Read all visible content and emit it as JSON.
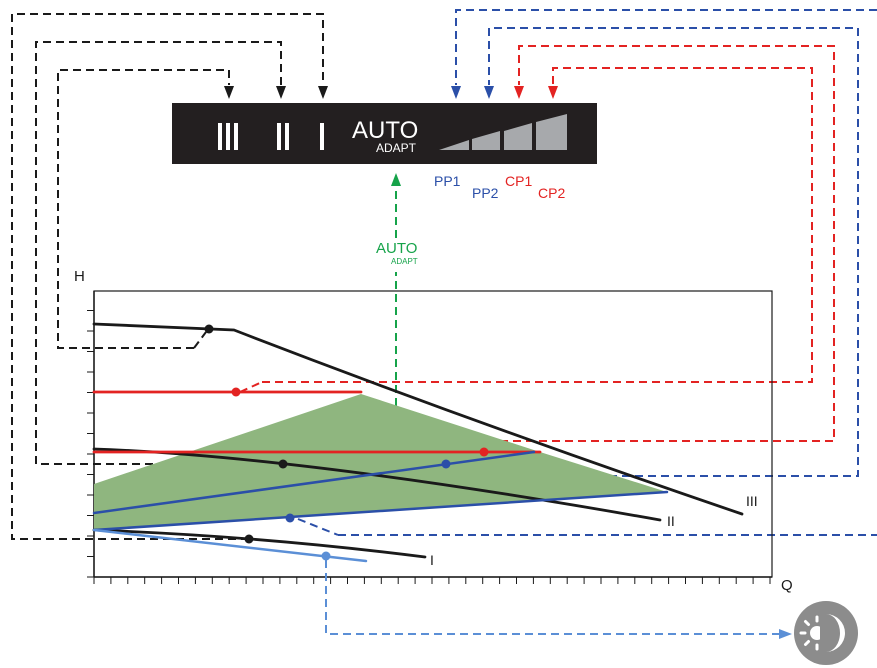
{
  "control_panel": {
    "speed_labels": [
      "III",
      "II",
      "I"
    ],
    "auto_label": "AUTO",
    "adapt_label": "ADAPT",
    "mode_labels": [
      {
        "text": "PP1",
        "color": "#2b4fa8"
      },
      {
        "text": "PP2",
        "color": "#2b4fa8"
      },
      {
        "text": "CP1",
        "color": "#e32322"
      },
      {
        "text": "CP2",
        "color": "#e32322"
      }
    ]
  },
  "auto_adapt": {
    "auto_label": "AUTO",
    "adapt_label": "ADAPT",
    "color": "#16a34a"
  },
  "chart": {
    "y_axis_label": "H",
    "x_axis_label": "Q",
    "curve_labels": [
      "III",
      "II",
      "I"
    ],
    "colors": {
      "black": "#1a1a1a",
      "red": "#e32322",
      "blue": "#2b4fa8",
      "light_blue": "#5b8fd6",
      "green_area": "#8fb67f",
      "night_icon": "#8c8c8c"
    }
  },
  "night_mode_icon": "sun-moon-icon"
}
